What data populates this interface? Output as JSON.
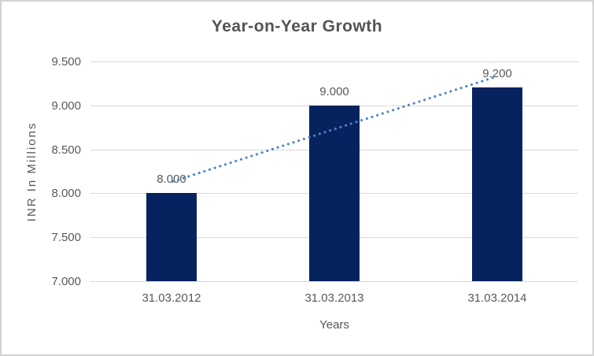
{
  "chart_data": {
    "type": "bar",
    "title": "Year-on-Year Growth",
    "categories": [
      "31.03.2012",
      "31.03.2013",
      "31.03.2014"
    ],
    "values": [
      8.0,
      9.0,
      9.2
    ],
    "value_labels": [
      "8.000",
      "9.000",
      "9.200"
    ],
    "xlabel": "Years",
    "ylabel": "INR In Millions",
    "ylim": [
      7.0,
      9.5
    ],
    "ytick_step": 0.5,
    "yticks": [
      7.0,
      7.5,
      8.0,
      8.5,
      9.0,
      9.5
    ],
    "ytick_labels": [
      "7.000",
      "7.500",
      "8.000",
      "8.500",
      "9.000",
      "9.500"
    ],
    "grid": true,
    "legend": "none",
    "trendline": {
      "type": "linear",
      "style": "dotted",
      "endpoint_values": [
        8.133,
        9.333
      ]
    },
    "colors": {
      "bar": "#07235f",
      "trendline": "#4f83c4",
      "gridline": "#d9d9d9",
      "text": "#595959",
      "title_text": "#545454",
      "frame_border": "#d2d2d2"
    }
  }
}
